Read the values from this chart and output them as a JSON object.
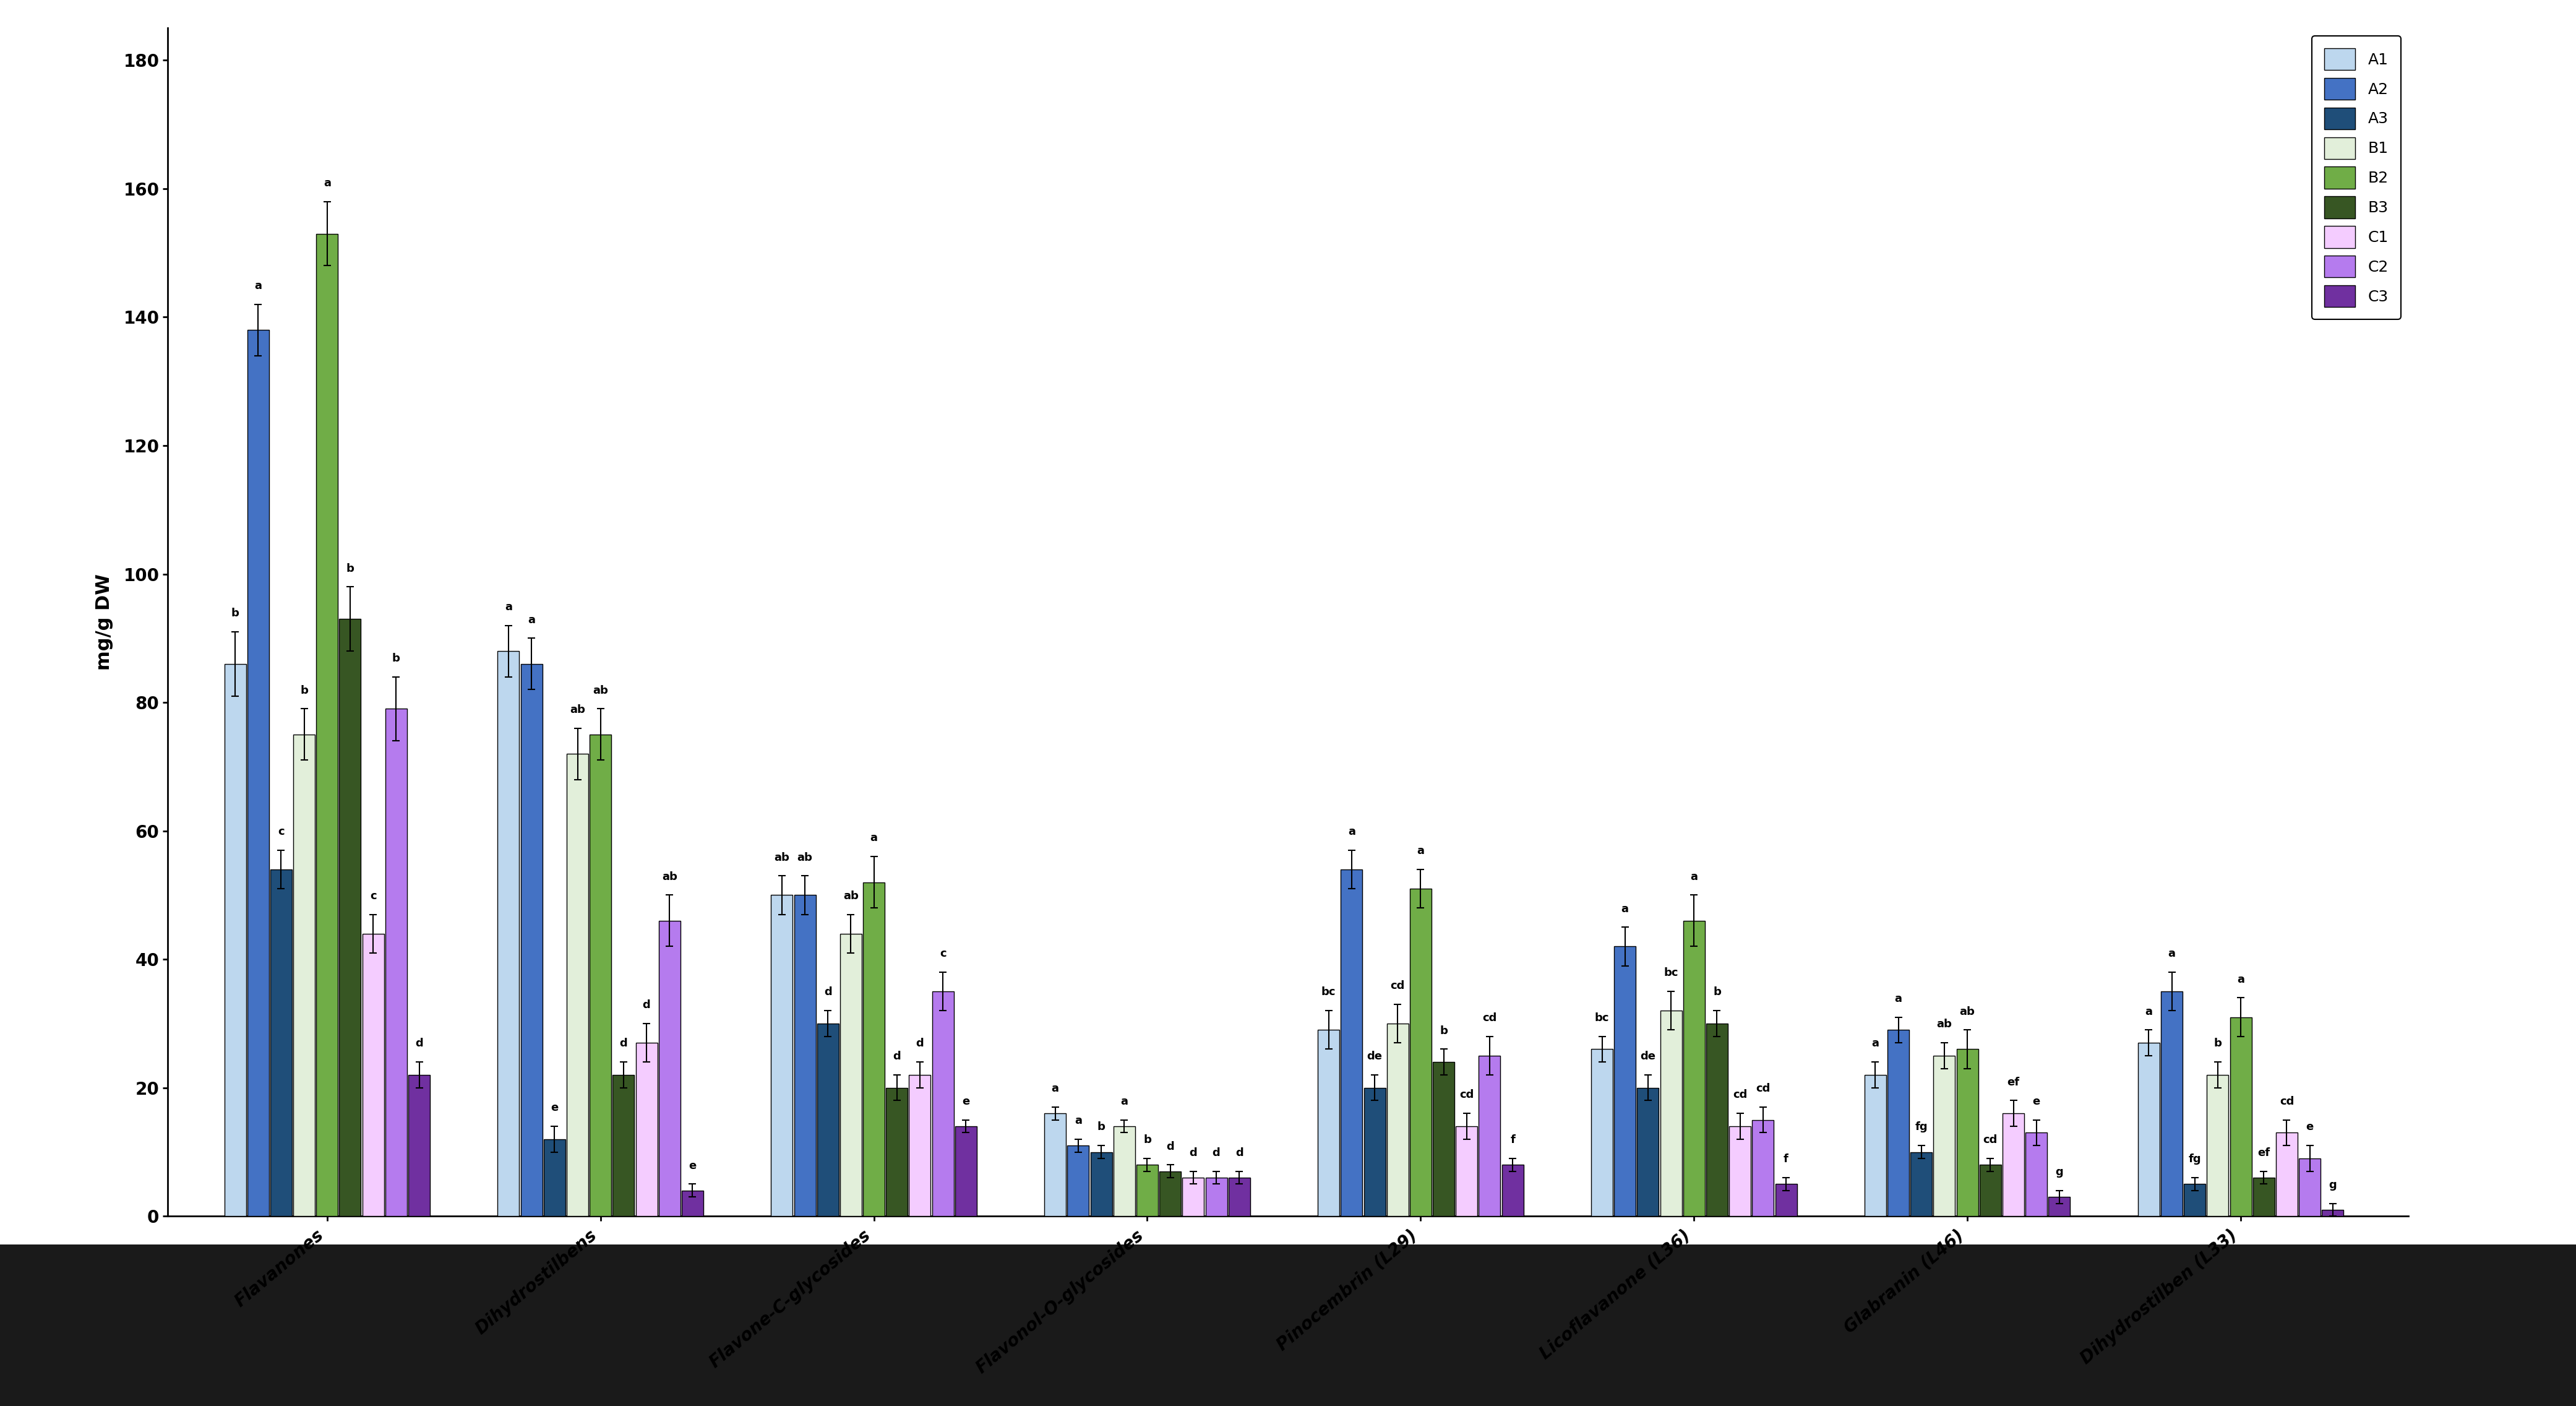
{
  "categories": [
    "Flavanones",
    "Dihydrostilbens",
    "Flavone-C-glycosides",
    "Flavonol-O-glycosides",
    "Pinocembrin (L29)",
    "Licoflavanone (L36)",
    "Glabranin (L46)",
    "Dihydrostilben (L33)"
  ],
  "series_labels": [
    "A1",
    "A2",
    "A3",
    "B1",
    "B2",
    "B3",
    "C1",
    "C2",
    "C3"
  ],
  "colors": [
    "#BDD7EE",
    "#4472C4",
    "#1F4E79",
    "#E2EFDA",
    "#70AD47",
    "#375623",
    "#F4CCFF",
    "#B57BEE",
    "#7030A0"
  ],
  "values": [
    [
      86,
      138,
      54,
      75,
      153,
      93,
      44,
      79,
      22
    ],
    [
      88,
      86,
      12,
      72,
      75,
      22,
      27,
      46,
      4
    ],
    [
      50,
      50,
      30,
      44,
      52,
      20,
      22,
      35,
      14
    ],
    [
      16,
      11,
      10,
      14,
      8,
      7,
      6,
      6,
      6
    ],
    [
      29,
      54,
      20,
      30,
      51,
      24,
      14,
      25,
      8
    ],
    [
      26,
      42,
      20,
      32,
      46,
      30,
      14,
      15,
      5
    ],
    [
      22,
      29,
      10,
      25,
      26,
      8,
      16,
      13,
      3
    ],
    [
      27,
      35,
      5,
      22,
      31,
      6,
      13,
      9,
      1
    ]
  ],
  "errors": [
    [
      5,
      4,
      3,
      4,
      5,
      5,
      3,
      5,
      2
    ],
    [
      4,
      4,
      2,
      4,
      4,
      2,
      3,
      4,
      1
    ],
    [
      3,
      3,
      2,
      3,
      4,
      2,
      2,
      3,
      1
    ],
    [
      1,
      1,
      1,
      1,
      1,
      1,
      1,
      1,
      1
    ],
    [
      3,
      3,
      2,
      3,
      3,
      2,
      2,
      3,
      1
    ],
    [
      2,
      3,
      2,
      3,
      4,
      2,
      2,
      2,
      1
    ],
    [
      2,
      2,
      1,
      2,
      3,
      1,
      2,
      2,
      1
    ],
    [
      2,
      3,
      1,
      2,
      3,
      1,
      2,
      2,
      1
    ]
  ],
  "sig_labels": [
    [
      "b",
      "a",
      "c",
      "b",
      "a",
      "b",
      "c",
      "b",
      "d"
    ],
    [
      "a",
      "a",
      "e",
      "ab",
      "ab",
      "d",
      "d",
      "ab",
      "e"
    ],
    [
      "ab",
      "ab",
      "d",
      "ab",
      "a",
      "d",
      "d",
      "c",
      "e"
    ],
    [
      "a",
      "a",
      "b",
      "a",
      "b",
      "d",
      "d",
      "d",
      "d"
    ],
    [
      "bc",
      "a",
      "de",
      "cd",
      "a",
      "b",
      "cd",
      "cd",
      "f"
    ],
    [
      "bc",
      "a",
      "de",
      "bc",
      "a",
      "b",
      "cd",
      "cd",
      "f"
    ],
    [
      "a",
      "a",
      "fg",
      "ab",
      "ab",
      "cd",
      "ef",
      "e",
      "g"
    ],
    [
      "a",
      "a",
      "fg",
      "b",
      "a",
      "ef",
      "cd",
      "e",
      "g"
    ]
  ],
  "ylabel": "mg/g DW",
  "ylim": [
    0,
    185
  ],
  "yticks": [
    0,
    20,
    40,
    60,
    80,
    100,
    120,
    140,
    160,
    180
  ],
  "background_color": "#ffffff",
  "fig_background": "#ffffff",
  "bottom_bar_color": "#1a1a1a",
  "bottom_bar_height": 0.115
}
